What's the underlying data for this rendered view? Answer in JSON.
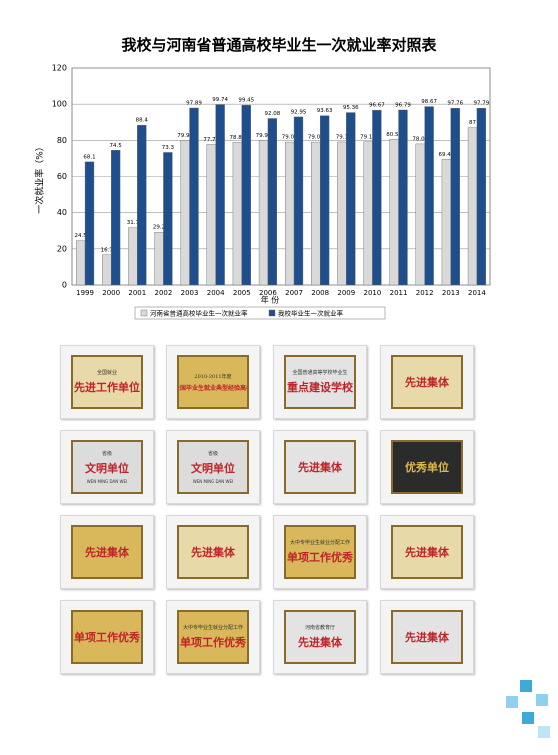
{
  "chart_data": {
    "type": "bar",
    "title": "我校与河南省普通高校毕业生一次就业率对照表",
    "y_label": "一次就业率（%）",
    "x_label": "年 份",
    "categories": [
      "1999",
      "2000",
      "2001",
      "2002",
      "2003",
      "2004",
      "2005",
      "2006",
      "2007",
      "2008",
      "2009",
      "2010",
      "2011",
      "2012",
      "2013",
      "2014"
    ],
    "series": [
      {
        "name": "河南省普通高校毕业生一次就业率",
        "color": "#d9d9d9",
        "values": [
          24.5,
          16.7,
          31.7,
          29.2,
          79.98,
          77.76,
          78.89,
          79.98,
          79.03,
          79.05,
          79.1,
          79.19,
          80.58,
          78.02,
          69.47,
          87
        ]
      },
      {
        "name": "我校毕业生一次就业率",
        "color": "#1f4e8c",
        "values": [
          68.1,
          74.5,
          88.4,
          73.3,
          97.89,
          99.74,
          99.45,
          92.08,
          92.95,
          93.63,
          95.36,
          96.67,
          96.79,
          98.67,
          97.76,
          97.79
        ]
      }
    ],
    "ylim": [
      0,
      120
    ],
    "yticks": [
      0,
      20,
      40,
      60,
      80,
      100,
      120
    ],
    "grid": true
  },
  "plaques": [
    {
      "heading": "全国就业",
      "main": "先进工作单位"
    },
    {
      "heading": "2010-2011年度",
      "main": "全国毕业生就业典型经验高校"
    },
    {
      "heading": "全国普通高等学校毕业生",
      "main": "重点建设学校"
    },
    {
      "main": "先进集体"
    },
    {
      "heading": "省级",
      "main": "文明单位",
      "sub": "WEN MING DAN WEI"
    },
    {
      "heading": "省级",
      "main": "文明单位",
      "sub": "WEN MING DAN WEI"
    },
    {
      "main": "先进集体"
    },
    {
      "main": "优秀单位"
    },
    {
      "main": "先进集体"
    },
    {
      "main": "先进集体"
    },
    {
      "heading": "大中专毕业生就业分配工作",
      "main": "单项工作优秀"
    },
    {
      "main": "先进集体"
    },
    {
      "main": "单项工作优秀"
    },
    {
      "heading": "大中专毕业生就业分配工作",
      "main": "单项工作优秀"
    },
    {
      "heading": "河南省教育厅",
      "main": "先进集体"
    },
    {
      "main": "先进集体"
    }
  ]
}
